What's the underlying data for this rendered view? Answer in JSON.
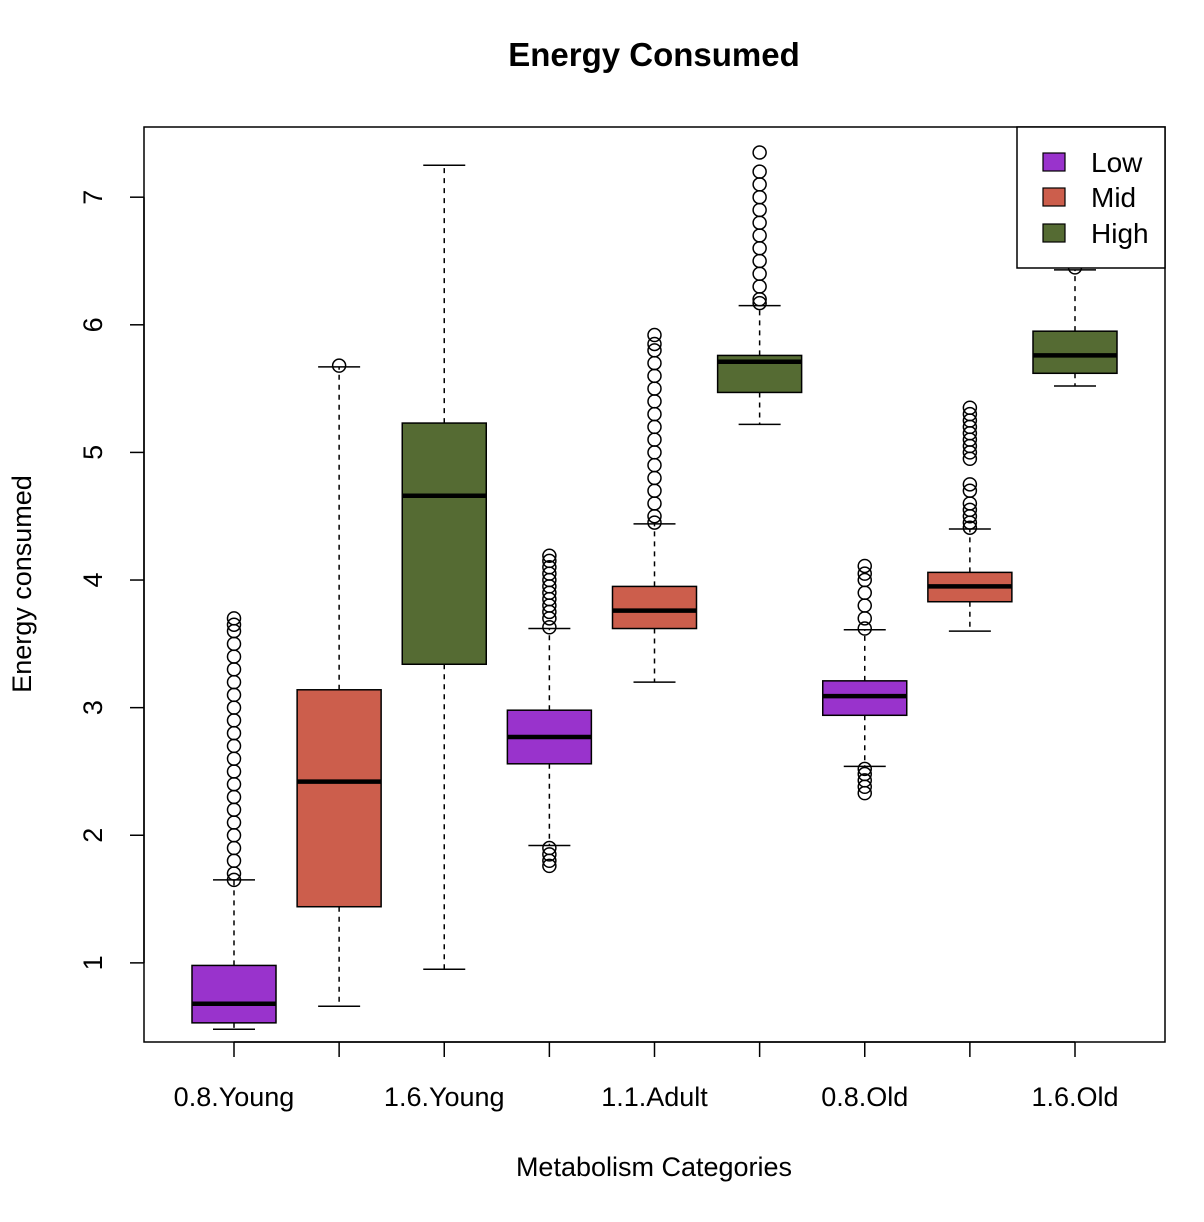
{
  "chart_data": {
    "type": "box",
    "title": "Energy Consumed",
    "xlabel": "Metabolism Categories",
    "ylabel": "Energy consumed",
    "yticks": [
      1,
      2,
      3,
      4,
      5,
      6,
      7
    ],
    "ylim": [
      0.38,
      7.55
    ],
    "grid": false,
    "legend": {
      "placement": "top-right",
      "entries": [
        {
          "name": "Low",
          "color": "#9933CC"
        },
        {
          "name": "Mid",
          "color": "#CC5E4C"
        },
        {
          "name": "High",
          "color": "#556B33"
        }
      ]
    },
    "tick_labels": [
      "0.8.Young",
      "",
      "1.6.Young",
      "",
      "1.1.Adult",
      "",
      "0.8.Old",
      "",
      "1.6.Old"
    ],
    "boxes": [
      {
        "group": "0.8.Young",
        "level": "Low",
        "color": "#9933CC",
        "whisker_low": 0.48,
        "q1": 0.53,
        "median": 0.68,
        "q3": 0.98,
        "whisker_high": 1.65,
        "outliers_low": [],
        "outliers_high": [
          1.65,
          1.7,
          1.8,
          1.9,
          2.0,
          2.1,
          2.2,
          2.3,
          2.4,
          2.5,
          2.6,
          2.7,
          2.8,
          2.9,
          3.0,
          3.1,
          3.2,
          3.3,
          3.4,
          3.5,
          3.6,
          3.65,
          3.7
        ]
      },
      {
        "group": "0.8.Young",
        "level": "Mid",
        "color": "#CC5E4C",
        "whisker_low": 0.66,
        "q1": 1.44,
        "median": 2.42,
        "q3": 3.14,
        "whisker_high": 5.67,
        "outliers_low": [],
        "outliers_high": [
          5.68
        ]
      },
      {
        "group": "1.6.Young",
        "level": "High",
        "color": "#556B33",
        "whisker_low": 0.95,
        "q1": 3.34,
        "median": 4.66,
        "q3": 5.23,
        "whisker_high": 7.25,
        "outliers_low": [],
        "outliers_high": []
      },
      {
        "group": "1.6.Young",
        "level": "Low",
        "color": "#9933CC",
        "whisker_low": 1.92,
        "q1": 2.56,
        "median": 2.77,
        "q3": 2.98,
        "whisker_high": 3.62,
        "outliers_low": [
          1.76,
          1.8,
          1.85,
          1.9
        ],
        "outliers_high": [
          3.63,
          3.7,
          3.75,
          3.8,
          3.85,
          3.9,
          3.95,
          4.0,
          4.05,
          4.1,
          4.15,
          4.19
        ]
      },
      {
        "group": "1.1.Adult",
        "level": "Mid",
        "color": "#CC5E4C",
        "whisker_low": 3.2,
        "q1": 3.62,
        "median": 3.76,
        "q3": 3.95,
        "whisker_high": 4.44,
        "outliers_low": [],
        "outliers_high": [
          4.45,
          4.5,
          4.6,
          4.7,
          4.8,
          4.9,
          5.0,
          5.1,
          5.2,
          5.3,
          5.4,
          5.5,
          5.6,
          5.7,
          5.8,
          5.85,
          5.92
        ]
      },
      {
        "group": "1.1.Adult",
        "level": "High",
        "color": "#556B33",
        "whisker_low": 5.22,
        "q1": 5.47,
        "median": 5.71,
        "q3": 5.76,
        "whisker_high": 6.15,
        "outliers_low": [],
        "outliers_high": [
          6.17,
          6.2,
          6.3,
          6.4,
          6.5,
          6.6,
          6.7,
          6.8,
          6.9,
          7.0,
          7.1,
          7.2,
          7.35
        ]
      },
      {
        "group": "0.8.Old",
        "level": "Low",
        "color": "#9933CC",
        "whisker_low": 2.54,
        "q1": 2.94,
        "median": 3.09,
        "q3": 3.21,
        "whisker_high": 3.61,
        "outliers_low": [
          2.33,
          2.38,
          2.43,
          2.48,
          2.52
        ],
        "outliers_high": [
          3.62,
          3.7,
          3.8,
          3.9,
          4.0,
          4.05,
          4.11
        ]
      },
      {
        "group": "0.8.Old",
        "level": "Mid",
        "color": "#CC5E4C",
        "whisker_low": 3.6,
        "q1": 3.83,
        "median": 3.95,
        "q3": 4.06,
        "whisker_high": 4.4,
        "outliers_low": [],
        "outliers_high": [
          4.41,
          4.45,
          4.5,
          4.55,
          4.6,
          4.7,
          4.75,
          4.95,
          5.0,
          5.05,
          5.1,
          5.15,
          5.2,
          5.25,
          5.3,
          5.35
        ]
      },
      {
        "group": "1.6.Old",
        "level": "High",
        "color": "#556B33",
        "whisker_low": 5.52,
        "q1": 5.62,
        "median": 5.76,
        "q3": 5.95,
        "whisker_high": 6.43,
        "outliers_low": [],
        "outliers_high": [
          6.45,
          6.5,
          6.55,
          6.6,
          6.64
        ]
      }
    ]
  }
}
